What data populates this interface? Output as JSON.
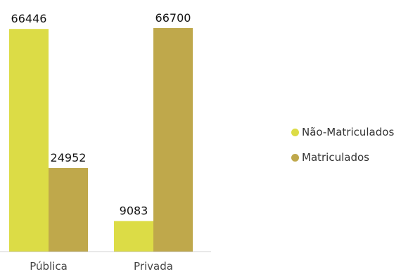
{
  "chart_data": {
    "type": "bar",
    "categories": [
      "Pública",
      "Privada"
    ],
    "series": [
      {
        "name": "Não-Matriculados",
        "values": [
          66446,
          9083
        ],
        "color": "#dcdc46"
      },
      {
        "name": "Matriculados",
        "values": [
          24952,
          66700
        ],
        "color": "#bfa84b"
      }
    ],
    "data_labels": [
      [
        "66446",
        "9083"
      ],
      [
        "24952",
        "66700"
      ]
    ],
    "ylim": [
      0,
      66700
    ],
    "grid": false,
    "legend_position": "right",
    "axis_line_color": "#d0d0d0"
  }
}
